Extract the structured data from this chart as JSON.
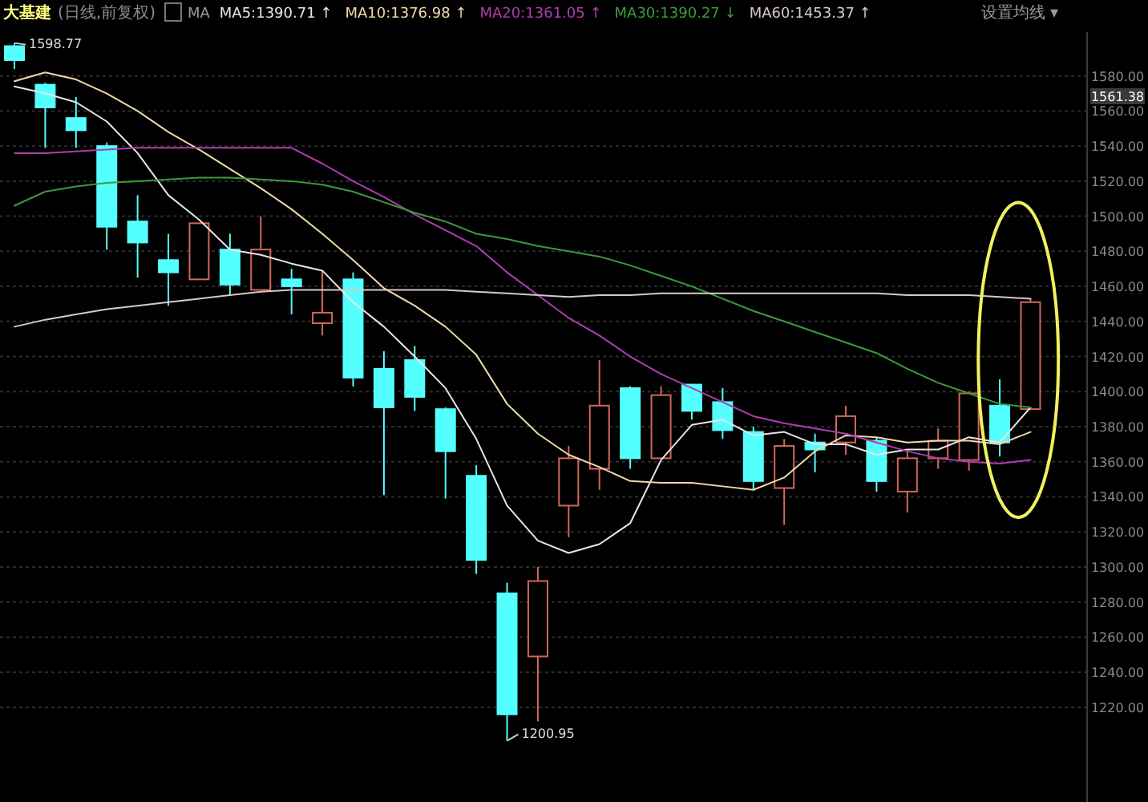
{
  "chart_data": {
    "type": "candlestick",
    "title": "大基建",
    "subtitle": "(日线,前复权)",
    "legend_title": "MA",
    "legend": "top",
    "categories": [
      null,
      null,
      null,
      null,
      null,
      null,
      null,
      null,
      null,
      null,
      null,
      null,
      null,
      null,
      null,
      null,
      null,
      null,
      null,
      null,
      null,
      null,
      null,
      null,
      null,
      null,
      null,
      null,
      null,
      null,
      null,
      null,
      null,
      null
    ],
    "ohlc": [
      [
        1597,
        1598.77,
        1584,
        1589
      ],
      [
        1575,
        1576,
        1539,
        1562
      ],
      [
        1556,
        1568,
        1539,
        1549
      ],
      [
        1540,
        1542,
        1481,
        1494
      ],
      [
        1497,
        1512,
        1465,
        1485
      ],
      [
        1475,
        1490,
        1449,
        1468
      ],
      [
        1464,
        1496,
        1464,
        1496
      ],
      [
        1481,
        1490,
        1455,
        1461
      ],
      [
        1458,
        1500,
        1458,
        1481
      ],
      [
        1464,
        1470,
        1444,
        1460
      ],
      [
        1439,
        1469,
        1432,
        1445
      ],
      [
        1464,
        1468,
        1403,
        1408
      ],
      [
        1413,
        1423,
        1341,
        1391
      ],
      [
        1418,
        1426,
        1389,
        1397
      ],
      [
        1390,
        1391,
        1339,
        1366
      ],
      [
        1352,
        1358,
        1296,
        1304
      ],
      [
        1285,
        1291,
        1200.95,
        1216
      ],
      [
        1249,
        1300,
        1212,
        1292
      ],
      [
        1335,
        1369,
        1317,
        1362
      ],
      [
        1356,
        1418,
        1344,
        1392
      ],
      [
        1402,
        1403,
        1356,
        1362
      ],
      [
        1362,
        1403,
        1362,
        1398
      ],
      [
        1404,
        1404,
        1384,
        1389
      ],
      [
        1394,
        1402,
        1373,
        1378
      ],
      [
        1377,
        1380,
        1344,
        1349
      ],
      [
        1345,
        1373,
        1324,
        1369
      ],
      [
        1371,
        1376,
        1354,
        1367
      ],
      [
        1371,
        1392,
        1364,
        1386
      ],
      [
        1372,
        1374,
        1343,
        1349
      ],
      [
        1343,
        1366,
        1331,
        1362
      ],
      [
        1362,
        1379,
        1356,
        1372
      ],
      [
        1361,
        1400,
        1355,
        1399
      ],
      [
        1392,
        1407,
        1363,
        1371
      ],
      [
        1390,
        1453,
        1390,
        1451
      ]
    ],
    "colors": [
      "#54ffff",
      "#54ffff",
      "#54ffff",
      "#54ffff",
      "#54ffff",
      "#54ffff",
      "#d0685a",
      "#54ffff",
      "#d0685a",
      "#54ffff",
      "#d0685a",
      "#54ffff",
      "#54ffff",
      "#54ffff",
      "#54ffff",
      "#54ffff",
      "#54ffff",
      "#d0685a",
      "#d0685a",
      "#d0685a",
      "#54ffff",
      "#d0685a",
      "#54ffff",
      "#54ffff",
      "#54ffff",
      "#d0685a",
      "#54ffff",
      "#d0685a",
      "#54ffff",
      "#d0685a",
      "#d0685a",
      "#d0685a",
      "#54ffff",
      "#d0685a"
    ],
    "series": [
      {
        "name": "MA5:1390.71 ↑",
        "type": "line",
        "color": "#e6e6e6",
        "values": [
          1574,
          1570,
          1565,
          1554,
          1536,
          1512,
          1498,
          1481,
          1478,
          1473,
          1469,
          1451,
          1437,
          1420,
          1402,
          1373,
          1335,
          1315,
          1308,
          1313,
          1325,
          1361,
          1381,
          1384,
          1375,
          1377,
          1370,
          1370,
          1364,
          1367,
          1367,
          1374,
          1371,
          1391
        ]
      },
      {
        "name": "MA10:1376.98 ↑",
        "type": "line",
        "color": "#f0d8a8",
        "values": [
          1577,
          1582,
          1578,
          1570,
          1560,
          1548,
          1538,
          1527,
          1516,
          1504,
          1490,
          1475,
          1459,
          1449,
          1437,
          1421,
          1393,
          1376,
          1364,
          1357,
          1349,
          1348,
          1348,
          1346,
          1344,
          1351,
          1366,
          1375,
          1374,
          1371,
          1372,
          1372,
          1370,
          1377
        ]
      },
      {
        "name": "MA20:1361.05 ↑",
        "type": "line",
        "color": "#b03cb0",
        "values": [
          1536,
          1536,
          1537,
          1538,
          1539,
          1539,
          1539,
          1539,
          1539,
          1539,
          1530,
          1520,
          1511,
          1501,
          1492,
          1483,
          1468,
          1455,
          1442,
          1432,
          1420,
          1410,
          1402,
          1394,
          1386,
          1382,
          1379,
          1376,
          1371,
          1366,
          1362,
          1360,
          1359,
          1361
        ]
      },
      {
        "name": "MA30:1390.27 ↓",
        "type": "line",
        "color": "#3c9a3c",
        "values": [
          1506,
          1514,
          1517,
          1519,
          1520,
          1521,
          1522,
          1522,
          1521,
          1520,
          1518,
          1514,
          1508,
          1502,
          1497,
          1490,
          1487,
          1483,
          1480,
          1477,
          1472,
          1466,
          1460,
          1453,
          1446,
          1440,
          1434,
          1428,
          1422,
          1413,
          1405,
          1399,
          1393,
          1391
        ]
      },
      {
        "name": "MA60:1453.37 ↑",
        "type": "line",
        "color": "#d8c8c8",
        "values": [
          1437,
          1441,
          1444,
          1447,
          1449,
          1451,
          1453,
          1455,
          1457,
          1458,
          1458,
          1458,
          1458,
          1458,
          1458,
          1457,
          1456,
          1455,
          1454,
          1455,
          1455,
          1456,
          1456,
          1456,
          1456,
          1456,
          1456,
          1456,
          1456,
          1455,
          1455,
          1455,
          1454,
          1453
        ]
      }
    ],
    "ylim": [
      1166,
      1605
    ],
    "yticks": [
      {
        "value": 1220,
        "label": "1220.00"
      },
      {
        "value": 1240,
        "label": "1240.00"
      },
      {
        "value": 1260,
        "label": "1260.00"
      },
      {
        "value": 1280,
        "label": "1280.00"
      },
      {
        "value": 1300,
        "label": "1300.00"
      },
      {
        "value": 1320,
        "label": "1320.00"
      },
      {
        "value": 1340,
        "label": "1340.00"
      },
      {
        "value": 1360,
        "label": "1360.00"
      },
      {
        "value": 1380,
        "label": "1380.00"
      },
      {
        "value": 1400,
        "label": "1400.00"
      },
      {
        "value": 1420,
        "label": "1420.00"
      },
      {
        "value": 1440,
        "label": "1440.00"
      },
      {
        "value": 1460,
        "label": "1460.00"
      },
      {
        "value": 1480,
        "label": "1480.00"
      },
      {
        "value": 1500,
        "label": "1500.00"
      },
      {
        "value": 1520,
        "label": "1520.00"
      },
      {
        "value": 1540,
        "label": "1540.00"
      },
      {
        "value": 1560,
        "label": "1560.00"
      },
      {
        "value": 1580,
        "label": "1580.00"
      }
    ],
    "grid": "y",
    "tick_labels": "y",
    "annotations": [
      "1598.77",
      "1200.95",
      "1561.38",
      "设置均线 ▾"
    ]
  }
}
